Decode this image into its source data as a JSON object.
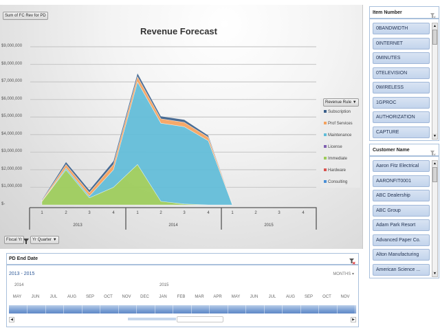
{
  "chart": {
    "field_button": "Sum of FC Rev for PD",
    "title": "Revenue Forecast",
    "y_ticks": [
      "$9,000,000",
      "$8,000,000",
      "$7,000,000",
      "$6,000,000",
      "$5,000,000",
      "$4,000,000",
      "$3,000,000",
      "$2,000,000",
      "$1,000,000",
      "$-"
    ],
    "quarters": [
      "1",
      "2",
      "3",
      "4",
      "1",
      "2",
      "3",
      "4",
      "1",
      "2",
      "3",
      "4"
    ],
    "years": [
      "2013",
      "2014",
      "2015"
    ],
    "legend_header": "Revenue Rule",
    "legend_items": [
      {
        "label": "Subscription",
        "color": "#3b5f8a"
      },
      {
        "label": "Prof Services",
        "color": "#f5a25d"
      },
      {
        "label": "Maintenance",
        "color": "#5fbcd8"
      },
      {
        "label": "License",
        "color": "#7f5fb0"
      },
      {
        "label": "Immediate",
        "color": "#9ccc59"
      },
      {
        "label": "Hardware",
        "color": "#d9534f"
      },
      {
        "label": "Consulting",
        "color": "#4a8fd6"
      }
    ],
    "axis_controls": {
      "fiscal_yr": "Fiscal Yr",
      "yr_quarter": "Yr Quarter"
    }
  },
  "chart_data": {
    "type": "area",
    "stacked": true,
    "title": "Revenue Forecast",
    "xlabel": "Fiscal Yr / Yr Quarter",
    "ylabel": "Sum of FC Rev for PD",
    "ylim": [
      0,
      9000000
    ],
    "grid": true,
    "legend_position": "right",
    "legend_title": "Revenue Rule",
    "categories": [
      "2013 Q1",
      "2013 Q2",
      "2013 Q3",
      "2013 Q4",
      "2014 Q1",
      "2014 Q2",
      "2014 Q3",
      "2014 Q4",
      "2015 Q1",
      "2015 Q2",
      "2015 Q3",
      "2015 Q4"
    ],
    "series": [
      {
        "name": "Immediate",
        "values": [
          200000,
          2000000,
          400000,
          1000000,
          2300000,
          200000,
          50000,
          0,
          0,
          0,
          0,
          0
        ]
      },
      {
        "name": "Maintenance",
        "values": [
          0,
          100000,
          100000,
          1000000,
          4700000,
          4450000,
          4400000,
          3650000,
          0,
          0,
          0,
          0
        ]
      },
      {
        "name": "Prof Services",
        "values": [
          50000,
          200000,
          200000,
          300000,
          300000,
          250000,
          250000,
          200000,
          30000,
          0,
          0,
          0
        ]
      },
      {
        "name": "Subscription",
        "values": [
          50000,
          150000,
          150000,
          200000,
          200000,
          150000,
          150000,
          100000,
          0,
          0,
          0,
          0
        ]
      },
      {
        "name": "License",
        "values": [
          0,
          0,
          0,
          0,
          0,
          0,
          0,
          0,
          0,
          0,
          0,
          0
        ]
      },
      {
        "name": "Hardware",
        "values": [
          0,
          0,
          0,
          0,
          0,
          0,
          0,
          0,
          0,
          0,
          0,
          0
        ]
      },
      {
        "name": "Consulting",
        "values": [
          0,
          0,
          0,
          0,
          0,
          0,
          0,
          0,
          0,
          0,
          0,
          0
        ]
      }
    ]
  },
  "timeline": {
    "title": "PD End Date",
    "range": "2013 - 2015",
    "level": "MONTHS ▾",
    "years": [
      {
        "label": "2014",
        "x": 11
      },
      {
        "label": "2015",
        "x": 222
      }
    ],
    "months": [
      "MAY",
      "JUN",
      "JUL",
      "AUG",
      "SEP",
      "OCT",
      "NOV",
      "DEC",
      "JAN",
      "FEB",
      "MAR",
      "APR",
      "MAY",
      "JUN",
      "JUL",
      "AUG",
      "SEP",
      "OCT",
      "NOV"
    ]
  },
  "slicers": {
    "item_number": {
      "title": "Item Number",
      "items": [
        "0BANDWIDTH",
        "0INTERNET",
        "0MINUTES",
        "0TELEVISION",
        "0WIRELESS",
        "1GPROC",
        "AUTHORIZATION",
        "CAPTURE"
      ]
    },
    "customer_name": {
      "title": "Customer Name",
      "items": [
        "Aaron Fitz Electrical",
        "AARONFIT0001",
        "ABC Dealership",
        "ABC Group",
        "Adam Park Resort",
        "Advanced Paper Co.",
        "Alton Manufacturing",
        "American Science ..."
      ]
    }
  }
}
